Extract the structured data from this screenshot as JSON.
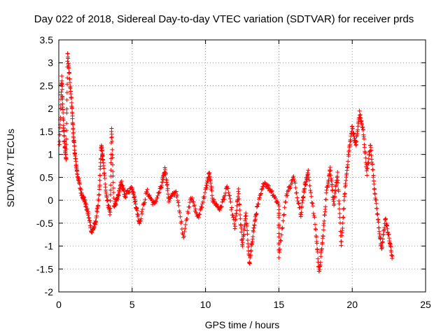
{
  "chart_data": {
    "type": "scatter",
    "title": "Day 022 of 2018, Sidereal Day-to-day VTEC variation (SDTVAR) for receiver prds",
    "xlabel": "GPS time / hours",
    "ylabel": "SDTVAR / TECUs",
    "xlim": [
      0,
      25
    ],
    "ylim": [
      -2,
      3.5
    ],
    "xticks": [
      0,
      5,
      10,
      15,
      20,
      25
    ],
    "yticks": [
      -2,
      -1.5,
      -1,
      -0.5,
      0,
      0.5,
      1,
      1.5,
      2,
      2.5,
      3,
      3.5
    ],
    "grid": true,
    "marker": "+",
    "series_color": "#ff0000",
    "anchors": [
      [
        0.05,
        1.2
      ],
      [
        0.2,
        2.7
      ],
      [
        0.3,
        1.8
      ],
      [
        0.4,
        1.2
      ],
      [
        0.5,
        0.9
      ],
      [
        0.6,
        3.2
      ],
      [
        0.75,
        2.6
      ],
      [
        0.9,
        2.0
      ],
      [
        1.0,
        1.4
      ],
      [
        1.1,
        1.0
      ],
      [
        1.25,
        0.6
      ],
      [
        1.5,
        0.2
      ],
      [
        1.75,
        0.0
      ],
      [
        2.0,
        -0.3
      ],
      [
        2.25,
        -0.7
      ],
      [
        2.5,
        -0.5
      ],
      [
        2.75,
        0.1
      ],
      [
        2.9,
        1.2
      ],
      [
        3.0,
        0.9
      ],
      [
        3.25,
        0.1
      ],
      [
        3.5,
        -0.3
      ],
      [
        3.6,
        1.6
      ],
      [
        3.75,
        -0.1
      ],
      [
        4.0,
        0.0
      ],
      [
        4.25,
        0.4
      ],
      [
        4.5,
        0.1
      ],
      [
        5.0,
        0.3
      ],
      [
        5.25,
        -0.1
      ],
      [
        5.5,
        -0.5
      ],
      [
        6.0,
        0.2
      ],
      [
        6.5,
        -0.1
      ],
      [
        7.0,
        0.3
      ],
      [
        7.25,
        0.7
      ],
      [
        7.5,
        0.0
      ],
      [
        8.0,
        0.2
      ],
      [
        8.5,
        -0.8
      ],
      [
        9.0,
        0.1
      ],
      [
        9.5,
        -0.4
      ],
      [
        10.0,
        0.2
      ],
      [
        10.25,
        0.6
      ],
      [
        10.5,
        0.0
      ],
      [
        11.0,
        -0.2
      ],
      [
        11.5,
        0.3
      ],
      [
        12.0,
        -0.6
      ],
      [
        12.25,
        0.2
      ],
      [
        12.5,
        -1.0
      ],
      [
        12.75,
        -0.3
      ],
      [
        13.0,
        -1.4
      ],
      [
        13.25,
        -0.7
      ],
      [
        13.5,
        -0.2
      ],
      [
        14.0,
        0.4
      ],
      [
        14.5,
        0.2
      ],
      [
        15.0,
        -0.1
      ],
      [
        15.0,
        -1.2
      ],
      [
        15.5,
        0.1
      ],
      [
        16.0,
        0.5
      ],
      [
        16.5,
        -0.3
      ],
      [
        16.75,
        0.3
      ],
      [
        17.0,
        0.6
      ],
      [
        17.5,
        -0.6
      ],
      [
        17.75,
        -1.6
      ],
      [
        18.0,
        -0.8
      ],
      [
        18.25,
        0.2
      ],
      [
        18.5,
        0.7
      ],
      [
        18.75,
        -0.1
      ],
      [
        19.0,
        0.6
      ],
      [
        19.25,
        -1.0
      ],
      [
        19.5,
        0.2
      ],
      [
        19.75,
        1.0
      ],
      [
        20.0,
        1.6
      ],
      [
        20.25,
        1.2
      ],
      [
        20.5,
        1.9
      ],
      [
        20.75,
        1.5
      ],
      [
        21.0,
        0.6
      ],
      [
        21.25,
        1.2
      ],
      [
        21.5,
        0.3
      ],
      [
        21.75,
        -0.4
      ],
      [
        22.0,
        -1.1
      ],
      [
        22.25,
        -0.4
      ],
      [
        22.5,
        -0.8
      ],
      [
        22.75,
        -1.3
      ]
    ]
  }
}
